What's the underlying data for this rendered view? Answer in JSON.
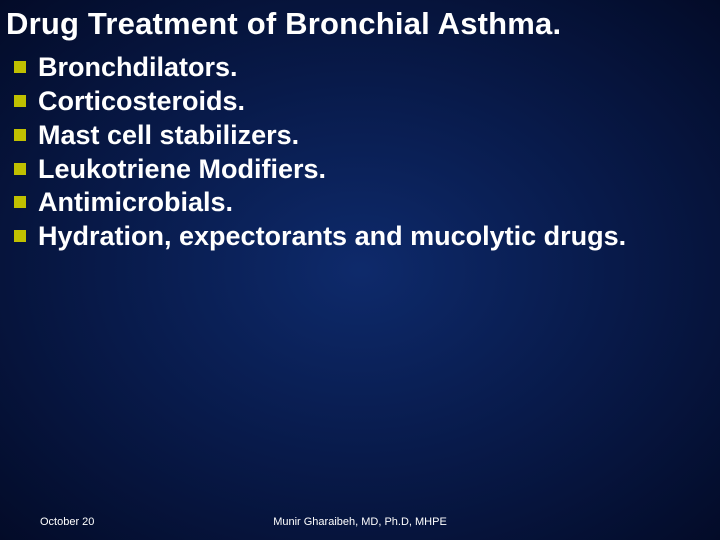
{
  "slide": {
    "title": "Drug Treatment of Bronchial Asthma.",
    "title_fontsize": 31,
    "title_color": "#ffffff",
    "bullets": [
      "Bronchdilators.",
      "Corticosteroids.",
      "Mast cell stabilizers.",
      "Leukotriene Modifiers.",
      "Antimicrobials.",
      "Hydration, expectorants and mucolytic drugs."
    ],
    "bullet_fontsize": 27,
    "bullet_color": "#ffffff",
    "bullet_marker_color": "#c0c000",
    "bullet_marker_size": 12,
    "footer": {
      "date": "October 20",
      "author": "Munir Gharaibeh, MD, Ph.D, MHPE",
      "fontsize": 11,
      "color": "#ffffff"
    },
    "background": {
      "type": "radial-gradient",
      "center_color": "#0e2a6b",
      "mid_color": "#081a4a",
      "edge_color": "#030b28"
    }
  }
}
